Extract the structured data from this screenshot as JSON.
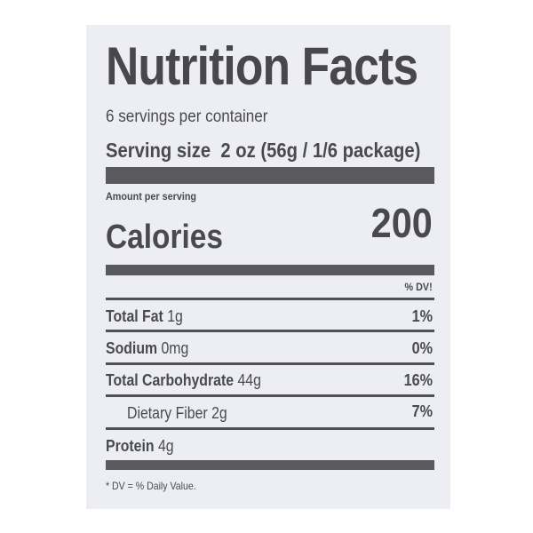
{
  "title": "Nutrition Facts",
  "servings_per_container": "6 servings per container",
  "serving_size": {
    "label": "Serving size",
    "value": "2 oz (56g / 1/6 package)"
  },
  "amount_per_serving": "Amount per serving",
  "calories": {
    "label": "Calories",
    "value": "200"
  },
  "dv_header": "% DV!",
  "nutrients": [
    {
      "name": "Total Fat",
      "amount": "1g",
      "dv": "1%"
    },
    {
      "name": "Sodium",
      "amount": "0mg",
      "dv": "0%"
    },
    {
      "name": "Total Carbohydrate",
      "amount": "44g",
      "dv": "16%"
    },
    {
      "name": "Dietary Fiber",
      "amount": "2g",
      "dv": "7%"
    },
    {
      "name": "Protein",
      "amount": "4g",
      "dv": ""
    }
  ],
  "footnote": "* DV = % Daily Value."
}
